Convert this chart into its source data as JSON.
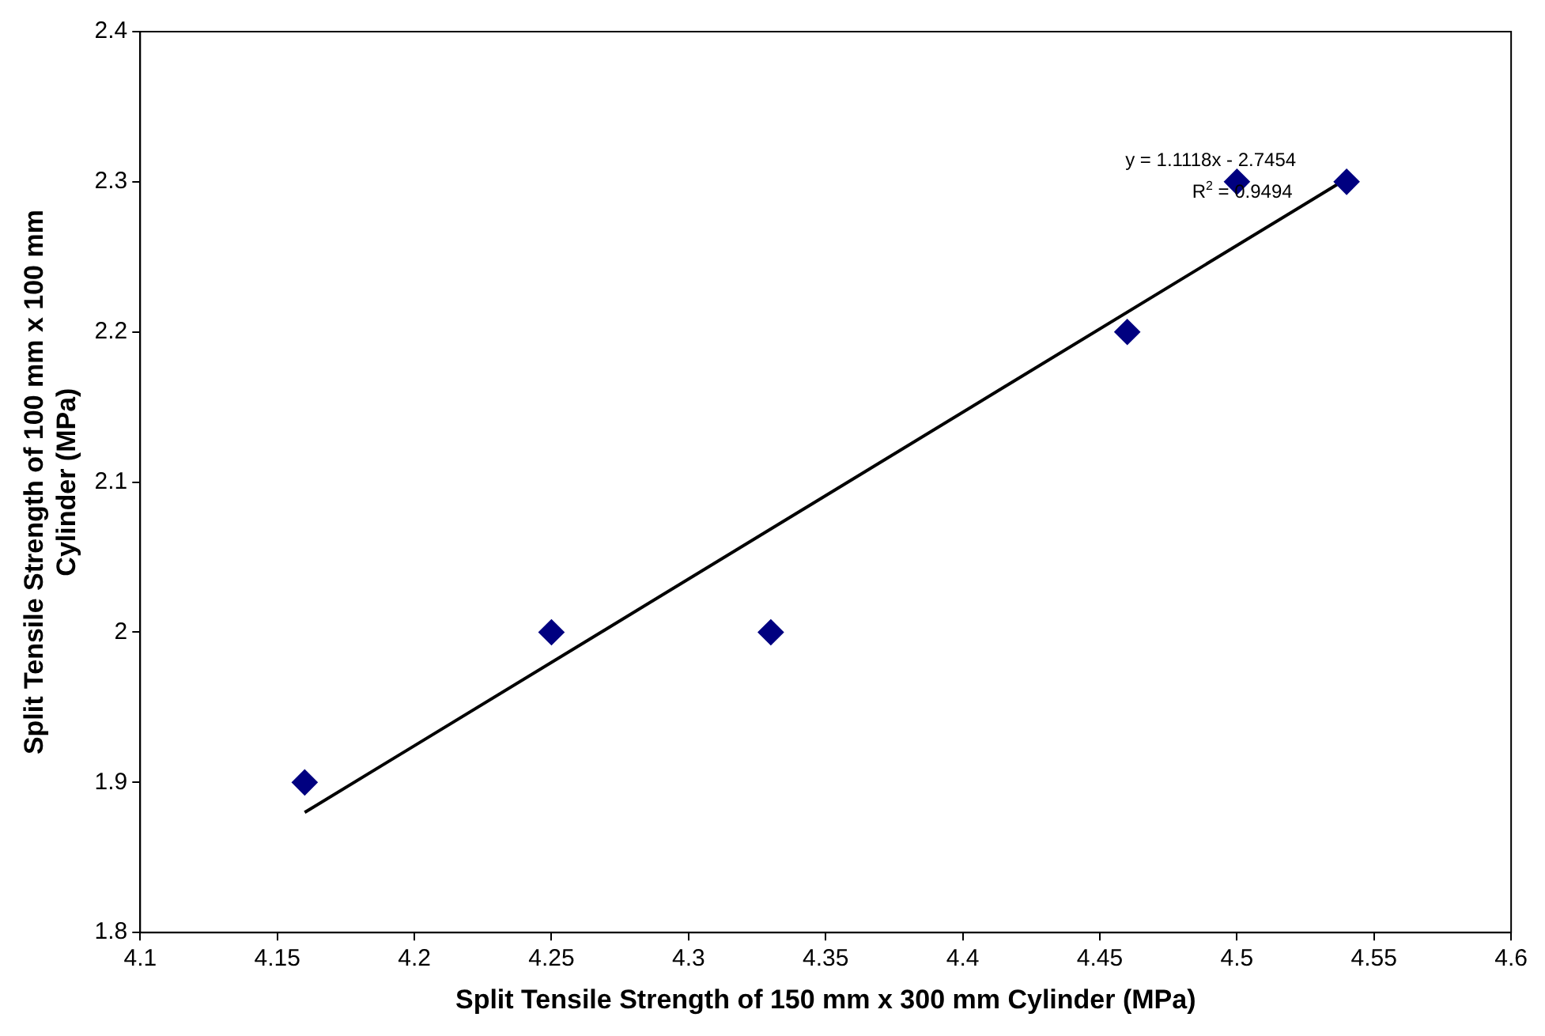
{
  "chart_data": {
    "type": "scatter",
    "xlabel": "Split Tensile Strength of 150 mm x 300 mm Cylinder (MPa)",
    "ylabel": "Split Tensile Strength of 100 mm x 100 mm\nCylinder (MPa)",
    "x": [
      4.16,
      4.25,
      4.33,
      4.46,
      4.5,
      4.54
    ],
    "series": [
      {
        "color": "#000080",
        "marker": "diamond",
        "values": [
          1.9,
          2.0,
          2.0,
          2.2,
          2.3,
          2.3
        ]
      },
      {
        "type": "line",
        "color": "#000000",
        "marker": "none",
        "x": [
          4.16,
          4.54
        ],
        "values": [
          1.88,
          2.302
        ]
      }
    ],
    "xlim": [
      4.1,
      4.6
    ],
    "xticks": [
      4.1,
      4.15,
      4.2,
      4.25,
      4.3,
      4.35,
      4.4,
      4.45,
      4.5,
      4.55,
      4.6
    ],
    "ylim": [
      1.8,
      2.4
    ],
    "yticks": [
      1.8,
      1.9,
      2,
      2.1,
      2.2,
      2.3,
      2.4
    ],
    "grid": false,
    "legend": false,
    "annotations": [
      "y = 1.1118x - 2.7454",
      "R$^{2}$ = 0.9494"
    ]
  }
}
